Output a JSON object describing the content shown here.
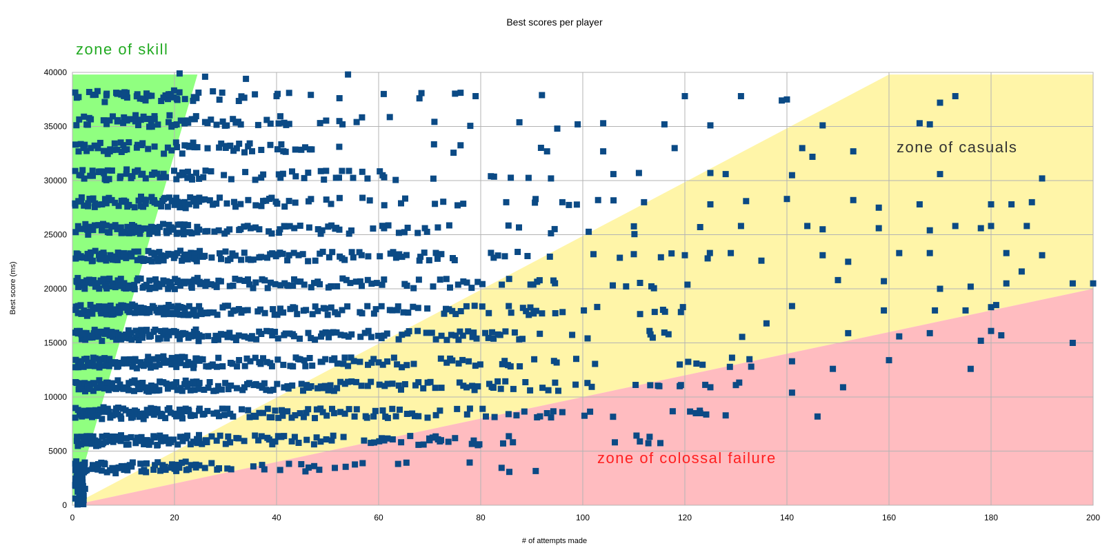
{
  "chart_data": {
    "type": "scatter",
    "title": "Best scores per player",
    "xlabel": "# of attempts made",
    "ylabel": "Best score (ms)",
    "xlim": [
      0,
      200
    ],
    "ylim": [
      0,
      40000
    ],
    "x_ticks": [
      0,
      20,
      40,
      60,
      80,
      100,
      120,
      140,
      160,
      180,
      200
    ],
    "y_ticks": [
      0,
      5000,
      10000,
      15000,
      20000,
      25000,
      30000,
      35000,
      40000
    ],
    "grid": true,
    "legend": "none",
    "colors": {
      "marker": "#0b4a85",
      "grid": "#b3b3b3",
      "zone_skill": "#90ff80",
      "zone_casuals": "#fff5a8",
      "zone_failure": "#ffbcc0",
      "label_skill": "#22aa22",
      "label_casuals": "#333333",
      "label_failure": "#ff2020"
    },
    "zones": [
      {
        "label": "zone of skill",
        "polygon": [
          [
            0,
            0
          ],
          [
            0,
            39800
          ],
          [
            24.5,
            39800
          ]
        ]
      },
      {
        "label": "zone of casuals",
        "polygon": [
          [
            0,
            0
          ],
          [
            160,
            39800
          ],
          [
            200,
            39800
          ],
          [
            200,
            20000
          ]
        ]
      },
      {
        "label": "zone of colossal failure",
        "polygon": [
          [
            0,
            0
          ],
          [
            200,
            20000
          ],
          [
            200,
            0
          ]
        ]
      }
    ],
    "bands": [
      3500,
      6000,
      8500,
      11000,
      13200,
      15700,
      18000,
      20500,
      23000,
      25500,
      28000,
      30500,
      33000,
      35500,
      37800
    ],
    "band_density": [
      0.6,
      0.85,
      0.95,
      1.0,
      1.0,
      1.0,
      1.0,
      0.95,
      0.9,
      0.8,
      0.7,
      0.6,
      0.55,
      0.5,
      0.45
    ],
    "series": [
      {
        "points": [
          [
            21,
            39900
          ],
          [
            26,
            39600
          ],
          [
            34,
            39400
          ],
          [
            54,
            39800
          ],
          [
            40,
            37800
          ],
          [
            61,
            38000
          ],
          [
            68,
            37600
          ],
          [
            79,
            37800
          ],
          [
            92,
            37900
          ],
          [
            120,
            37800
          ],
          [
            131,
            37800
          ],
          [
            139,
            37400
          ],
          [
            140,
            37500
          ],
          [
            173,
            37800
          ],
          [
            170,
            37200
          ],
          [
            95,
            34800
          ],
          [
            99,
            35200
          ],
          [
            104,
            35300
          ],
          [
            116,
            35200
          ],
          [
            125,
            35100
          ],
          [
            147,
            35100
          ],
          [
            166,
            35300
          ],
          [
            168,
            35200
          ],
          [
            93,
            32700
          ],
          [
            104,
            32700
          ],
          [
            118,
            33000
          ],
          [
            143,
            33000
          ],
          [
            145,
            32200
          ],
          [
            153,
            32700
          ],
          [
            82,
            30400
          ],
          [
            106,
            30600
          ],
          [
            111,
            30700
          ],
          [
            125,
            30700
          ],
          [
            128,
            30600
          ],
          [
            141,
            30500
          ],
          [
            170,
            30600
          ],
          [
            190,
            30200
          ],
          [
            85,
            28000
          ],
          [
            96,
            28000
          ],
          [
            103,
            28200
          ],
          [
            112,
            28000
          ],
          [
            125,
            27800
          ],
          [
            132,
            28100
          ],
          [
            140,
            28300
          ],
          [
            153,
            28200
          ],
          [
            158,
            27500
          ],
          [
            166,
            27800
          ],
          [
            180,
            27800
          ],
          [
            184,
            27800
          ],
          [
            188,
            28000
          ],
          [
            123,
            25700
          ],
          [
            131,
            25800
          ],
          [
            144,
            25800
          ],
          [
            147,
            25500
          ],
          [
            158,
            25600
          ],
          [
            168,
            25400
          ],
          [
            173,
            25800
          ],
          [
            178,
            25600
          ],
          [
            180,
            25800
          ],
          [
            187,
            25800
          ],
          [
            110,
            23200
          ],
          [
            120,
            23100
          ],
          [
            129,
            23300
          ],
          [
            135,
            22600
          ],
          [
            147,
            23100
          ],
          [
            152,
            22500
          ],
          [
            162,
            23300
          ],
          [
            168,
            23300
          ],
          [
            183,
            23300
          ],
          [
            190,
            23100
          ],
          [
            150,
            20800
          ],
          [
            159,
            20700
          ],
          [
            170,
            20000
          ],
          [
            176,
            20200
          ],
          [
            183,
            20500
          ],
          [
            196,
            20500
          ],
          [
            200,
            20500
          ],
          [
            186,
            21600
          ],
          [
            141,
            18400
          ],
          [
            159,
            18000
          ],
          [
            169,
            18000
          ],
          [
            175,
            18000
          ],
          [
            180,
            18300
          ],
          [
            181,
            18500
          ],
          [
            136,
            16800
          ],
          [
            152,
            15900
          ],
          [
            162,
            15600
          ],
          [
            168,
            15900
          ],
          [
            178,
            15200
          ],
          [
            180,
            16100
          ],
          [
            182,
            15700
          ],
          [
            196,
            15000
          ],
          [
            119,
            13000
          ],
          [
            133,
            12800
          ],
          [
            141,
            13300
          ],
          [
            149,
            12600
          ],
          [
            160,
            13400
          ],
          [
            176,
            12600
          ],
          [
            115,
            11000
          ],
          [
            119,
            11000
          ],
          [
            125,
            10900
          ],
          [
            130,
            11100
          ],
          [
            141,
            10400
          ],
          [
            151,
            10900
          ],
          [
            93,
            8500
          ],
          [
            96,
            8600
          ],
          [
            123,
            8500
          ],
          [
            128,
            8300
          ],
          [
            146,
            8200
          ],
          [
            70,
            6000
          ],
          [
            72,
            5900
          ]
        ]
      }
    ],
    "annotations": [
      {
        "text": "zone of skill"
      },
      {
        "text": "zone of casuals"
      },
      {
        "text": "zone of colossal failure"
      }
    ]
  }
}
